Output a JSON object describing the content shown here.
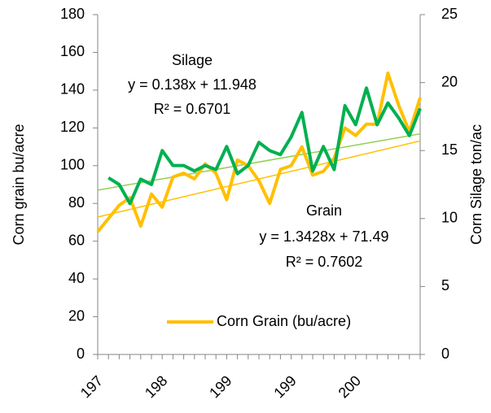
{
  "chart_data": {
    "type": "line",
    "y_label": "Corn grain bu/acre",
    "y2_label": "Corn Silage ton/ac",
    "categories": [
      "197",
      null,
      null,
      null,
      null,
      null,
      "198",
      null,
      null,
      null,
      null,
      null,
      "199",
      null,
      null,
      null,
      null,
      null,
      "199",
      null,
      null,
      null,
      null,
      null,
      "200",
      null,
      null,
      null,
      null,
      null,
      null
    ],
    "series": [
      {
        "name": "Corn Grain (bu/acre)",
        "color": "#ffc000",
        "values": [
          65,
          72,
          79,
          83,
          68,
          85,
          78,
          94,
          96,
          93,
          101,
          96,
          82,
          103,
          100,
          92,
          80,
          98,
          100,
          110,
          95,
          97,
          104,
          120,
          116,
          122,
          122,
          149,
          132,
          118,
          136
        ]
      },
      {
        "color": "#00b050",
        "axis": "y2",
        "values": [
          null,
          13.0,
          12.5,
          11.1,
          12.9,
          12.5,
          15.0,
          13.9,
          13.9,
          13.5,
          13.9,
          13.6,
          15.3,
          13.3,
          13.9,
          15.6,
          15.0,
          14.7,
          16.0,
          17.8,
          13.5,
          15.3,
          13.6,
          18.3,
          16.9,
          19.6,
          16.9,
          18.5,
          17.4,
          16.1,
          18.1
        ]
      }
    ],
    "trendlines": [
      {
        "color": "#ffc000",
        "start": 72.8,
        "end": 113.1
      },
      {
        "color": "#92d050",
        "axis": "y2",
        "start": 12.09,
        "end": 16.23
      }
    ],
    "annotations": [
      "Silage",
      "y = 0.138x + 11.948",
      "R² = 0.6701",
      "Grain",
      "y = 1.3428x + 71.49",
      "R² = 0.7602"
    ],
    "ylim": [
      0,
      180
    ],
    "yticks": [
      0,
      20,
      40,
      60,
      80,
      100,
      120,
      140,
      160,
      180
    ],
    "y2lim": [
      0,
      25
    ],
    "y2ticks": [
      0,
      5,
      10,
      15,
      20,
      25
    ],
    "legend": "bottom"
  }
}
